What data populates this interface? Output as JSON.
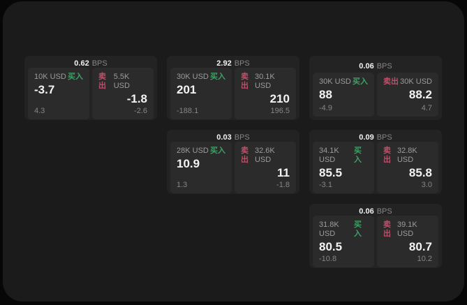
{
  "labels": {
    "buy": "买入",
    "sell": "卖出",
    "bps_unit": "BPS"
  },
  "colors": {
    "background": "#070707",
    "panel_bg": "#1b1b1c",
    "card_bg": "#232324",
    "subpanel_bg": "#2b2b2c",
    "buy_green": "#3fa065",
    "sell_red": "#bd5069"
  },
  "cards": [
    {
      "bps": "0.62",
      "buy": {
        "notional": "10K USD",
        "value": "-3.7",
        "delta": "4.3"
      },
      "sell": {
        "notional": "5.5K USD",
        "value": "-1.8",
        "delta": "-2.6"
      }
    },
    {
      "bps": "2.92",
      "buy": {
        "notional": "30K USD",
        "value": "201",
        "delta": "-188.1"
      },
      "sell": {
        "notional": "30.1K USD",
        "value": "210",
        "delta": "196.5"
      }
    },
    {
      "bps": "0.06",
      "buy": {
        "notional": "30K USD",
        "value": "88",
        "delta": "-4.9"
      },
      "sell": {
        "notional": "30K USD",
        "value": "88.2",
        "delta": "4.7"
      }
    },
    {
      "bps": "0.03",
      "buy": {
        "notional": "28K USD",
        "value": "10.9",
        "delta": "1.3"
      },
      "sell": {
        "notional": "32.6K USD",
        "value": "11",
        "delta": "-1.8"
      }
    },
    {
      "bps": "0.09",
      "buy": {
        "notional": "34.1K USD",
        "value": "85.5",
        "delta": "-3.1"
      },
      "sell": {
        "notional": "32.8K USD",
        "value": "85.8",
        "delta": "3.0"
      }
    },
    {
      "bps": "0.06",
      "buy": {
        "notional": "31.8K USD",
        "value": "80.5",
        "delta": "-10.8"
      },
      "sell": {
        "notional": "39.1K USD",
        "value": "80.7",
        "delta": "10.2"
      }
    }
  ]
}
